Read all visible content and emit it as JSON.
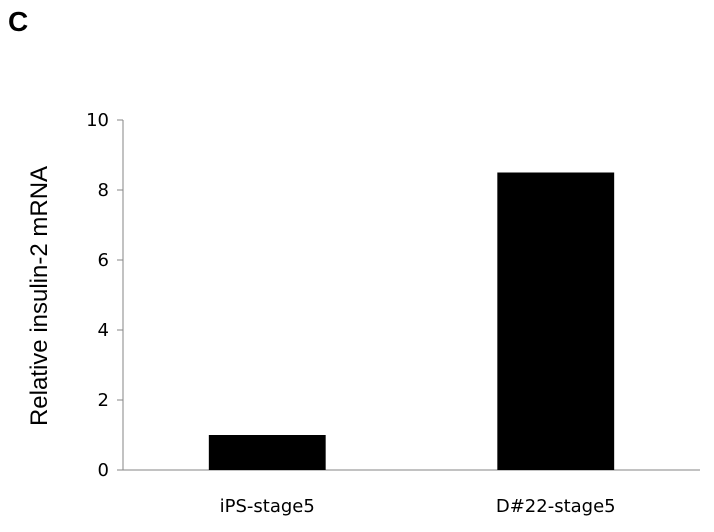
{
  "panel_label": "C",
  "chart_data": {
    "type": "bar",
    "categories": [
      "iPS-stage5",
      "D#22-stage5"
    ],
    "values": [
      1.0,
      8.5
    ],
    "title": "",
    "xlabel": "",
    "ylabel": "Relative insulin-2 mRNA",
    "ylim": [
      0,
      10
    ],
    "yticks": [
      0,
      2,
      4,
      6,
      8,
      10
    ],
    "bar_color": "#000000",
    "grid": false,
    "legend": "none"
  }
}
